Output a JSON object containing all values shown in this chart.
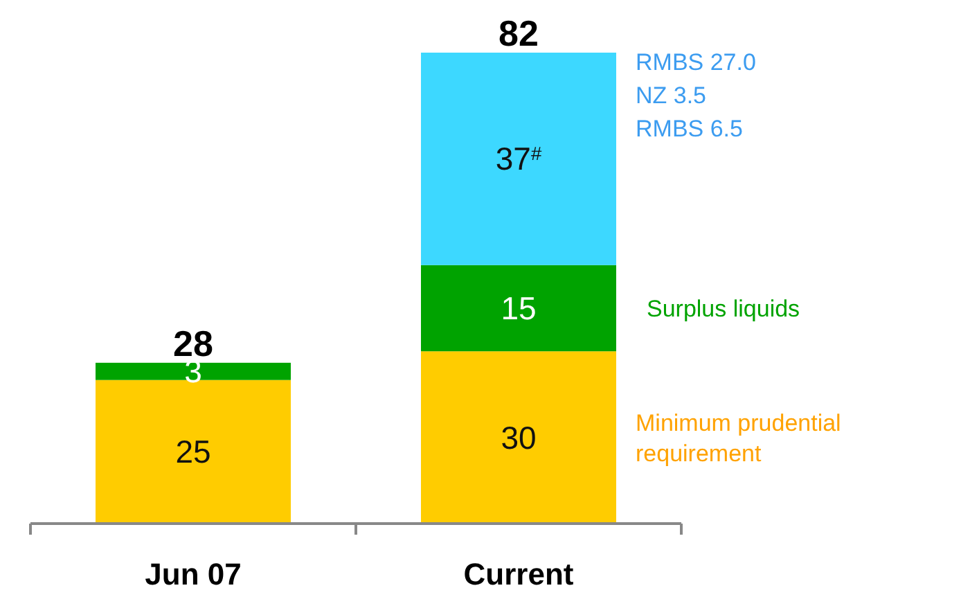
{
  "chart_data": {
    "type": "bar",
    "stacked": true,
    "categories": [
      "Jun 07",
      "Current"
    ],
    "series": [
      {
        "name": "Minimum  prudential requirement",
        "color": "#ffcc00",
        "values": [
          25,
          30
        ]
      },
      {
        "name": "Surplus liquids",
        "color": "#00a300",
        "values": [
          3,
          15
        ]
      },
      {
        "color": "#3dd8ff",
        "values": [
          null,
          37
        ],
        "value_labels": [
          null,
          "37$^{#}$"
        ]
      }
    ],
    "data_labels": true,
    "totals": [
      "28",
      "82"
    ],
    "ylim": [
      0,
      82
    ],
    "annotations": [
      "RMBS 27.0",
      "NZ 3.5",
      "RMBS 6.5"
    ]
  }
}
